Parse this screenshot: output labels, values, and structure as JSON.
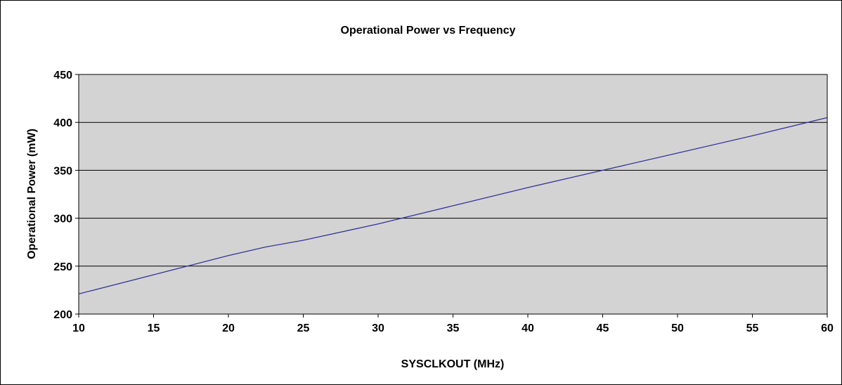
{
  "chart_data": {
    "type": "line",
    "title": "Operational Power vs Frequency",
    "xlabel": "SYSCLKOUT (MHz)",
    "ylabel": "Operational Power (mW)",
    "xlim": [
      10,
      60
    ],
    "ylim": [
      200,
      450
    ],
    "x_ticks": [
      10,
      15,
      20,
      25,
      30,
      35,
      40,
      45,
      50,
      55,
      60
    ],
    "y_ticks": [
      200,
      250,
      300,
      350,
      400,
      450
    ],
    "grid": "horizontal",
    "legend": "none",
    "series": [
      {
        "x": [
          10,
          15,
          20,
          22.5,
          25,
          30,
          35,
          40,
          45,
          50,
          55,
          60
        ],
        "y": [
          221,
          241,
          261,
          270,
          277,
          294,
          313,
          332,
          350,
          368,
          386,
          405
        ],
        "color": "#33339a"
      }
    ]
  },
  "colors": {
    "plot_background": "#d3d3d3",
    "gridline": "#000000",
    "frame": "#000000"
  }
}
